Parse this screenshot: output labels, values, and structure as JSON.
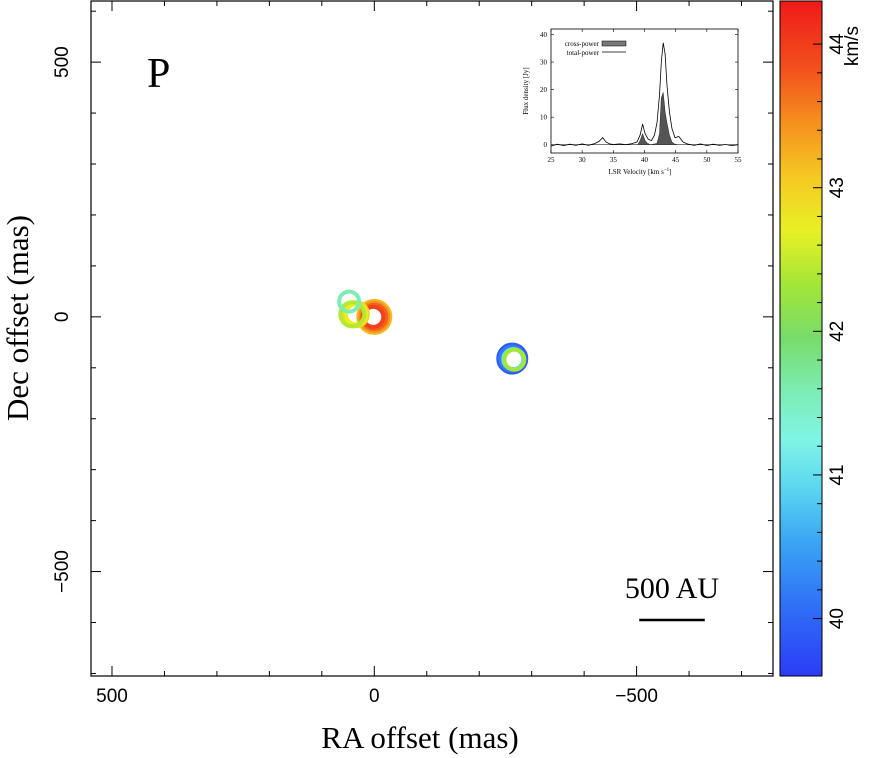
{
  "chart_data": {
    "type": "scatter",
    "panel_label": "P",
    "xlabel": "RA offset (mas)",
    "ylabel": "Dec offset (mas)",
    "xlim": [
      540,
      -760
    ],
    "ylim": [
      -705,
      620
    ],
    "x_ticks": [
      500,
      0,
      -500
    ],
    "y_ticks": [
      500,
      0,
      -500
    ],
    "x_tick_labels": [
      "500",
      "0",
      "−500"
    ],
    "y_tick_labels": [
      "500",
      "0",
      "−500"
    ],
    "scale_bar": {
      "label": "500 AU",
      "length_mas": 125,
      "ra_start": -505
    },
    "colorbar": {
      "label": "km/s",
      "range": [
        39.6,
        44.3
      ],
      "ticks": [
        40,
        41,
        42,
        43,
        44
      ],
      "tick_labels": [
        "40",
        "41",
        "42",
        "43",
        "44"
      ]
    },
    "maser_spots": [
      {
        "ra": 0,
        "dec": 0,
        "velocity": 43.2,
        "size": 3
      },
      {
        "ra": 0,
        "dec": 0,
        "velocity": 43.5,
        "size": 2
      },
      {
        "ra": 0,
        "dec": 0,
        "velocity": 43.8,
        "size": 1
      },
      {
        "ra": 2,
        "dec": 0,
        "velocity": 44.0,
        "size": 0
      },
      {
        "ra": 35,
        "dec": 5,
        "velocity": 42.9,
        "size": 1
      },
      {
        "ra": 35,
        "dec": 5,
        "velocity": 42.7,
        "size": 0
      },
      {
        "ra": 42,
        "dec": 5,
        "velocity": 42.4,
        "size": 1
      },
      {
        "ra": 48,
        "dec": 30,
        "velocity": 41.6,
        "size": 0
      },
      {
        "ra": -263,
        "dec": -82,
        "velocity": 39.9,
        "size": 2
      },
      {
        "ra": -263,
        "dec": -82,
        "velocity": 40.2,
        "size": 1
      },
      {
        "ra": -265,
        "dec": -83,
        "velocity": 40.6,
        "size": 0
      },
      {
        "ra": -265,
        "dec": -83,
        "velocity": 41.0,
        "size": 0
      },
      {
        "ra": -267,
        "dec": -84,
        "velocity": 42.3,
        "size": 0
      }
    ],
    "inset": {
      "type": "line",
      "xlabel": "LSR Velocity [km s",
      "xlabel_sup": "−1",
      "xlabel_tail": "]",
      "ylabel": "Flux density [Jy]",
      "xlim": [
        25,
        55
      ],
      "ylim": [
        -3,
        42
      ],
      "x_ticks": [
        25,
        30,
        35,
        40,
        45,
        50,
        55
      ],
      "y_ticks": [
        0,
        10,
        20,
        30,
        40
      ],
      "legend": [
        "cross-power",
        "total-power"
      ],
      "total_power": {
        "x": [
          25,
          26,
          27,
          28,
          29,
          30,
          31,
          32,
          32.7,
          33.3,
          33.8,
          34.4,
          35,
          36,
          37,
          38,
          38.8,
          39.3,
          39.7,
          40.1,
          40.6,
          41.1,
          41.6,
          42.0,
          42.4,
          42.7,
          43.0,
          43.3,
          43.6,
          44.0,
          44.4,
          44.9,
          45.5,
          46.2,
          47,
          48,
          49,
          50,
          51,
          52,
          53,
          54,
          55
        ],
        "y": [
          -0.5,
          0.2,
          -0.3,
          0.2,
          -0.2,
          0.3,
          -0.2,
          0.4,
          1.2,
          2.6,
          1.0,
          0.3,
          0.1,
          0.3,
          0.0,
          0.4,
          1.0,
          3.5,
          7.5,
          4.0,
          2.0,
          1.5,
          3.5,
          8.0,
          18.0,
          30.0,
          37.0,
          33.0,
          22.0,
          12.0,
          6.0,
          2.5,
          3.0,
          1.0,
          0.2,
          -0.2,
          0.3,
          -0.3,
          0.2,
          -0.2,
          0.1,
          -0.3,
          0.0
        ]
      },
      "cross_power": {
        "x": [
          25,
          38.9,
          39.3,
          39.7,
          40.1,
          40.5,
          41,
          42,
          42.4,
          42.7,
          43.0,
          43.3,
          43.6,
          44.0,
          44.4,
          44.8,
          45.3,
          55
        ],
        "y": [
          0,
          0,
          1.5,
          4.0,
          1.5,
          0.5,
          0,
          0.5,
          4.0,
          17.0,
          19.0,
          12.0,
          8.0,
          3.5,
          1.0,
          0.3,
          0,
          0
        ]
      }
    }
  }
}
